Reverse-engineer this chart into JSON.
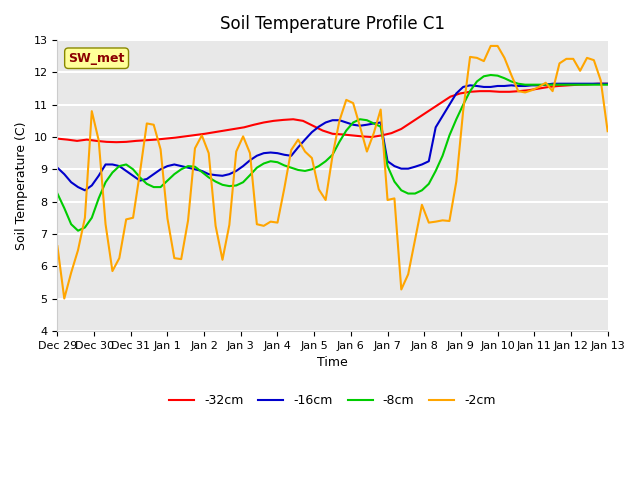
{
  "title": "Soil Temperature Profile C1",
  "xlabel": "Time",
  "ylabel": "Soil Temperature (C)",
  "ylim": [
    4.0,
    13.0
  ],
  "yticks": [
    4.0,
    5.0,
    6.0,
    7.0,
    8.0,
    9.0,
    10.0,
    11.0,
    12.0,
    13.0
  ],
  "bg_color": "#e8e8e8",
  "plot_bg_color": "#e8e8e8",
  "grid_color": "white",
  "annotation_text": "SW_met",
  "annotation_color": "#8B0000",
  "annotation_bg": "#FFFF99",
  "legend_entries": [
    "-32cm",
    "-16cm",
    "-8cm",
    "-2cm"
  ],
  "line_colors": [
    "#ff0000",
    "#0000cc",
    "#00cc00",
    "#ffa500"
  ],
  "x_labels": [
    "Dec 29",
    "Dec 30",
    "Dec 31",
    "Jan 1",
    "Jan 2",
    "Jan 3",
    "Jan 4",
    "Jan 5",
    "Jan 6",
    "Jan 7",
    "Jan 8",
    "Jan 9",
    "Jan 10",
    "Jan 11",
    "Jan 12",
    "Jan 13"
  ],
  "series_32cm": [
    9.95,
    9.92,
    9.88,
    9.92,
    9.88,
    9.85,
    9.84,
    9.85,
    9.88,
    9.9,
    9.92,
    9.95,
    9.98,
    10.02,
    10.06,
    10.1,
    10.15,
    10.2,
    10.25,
    10.3,
    10.38,
    10.45,
    10.5,
    10.53,
    10.55,
    10.5,
    10.35,
    10.2,
    10.1,
    10.08,
    10.05,
    10.02,
    10.0,
    10.05,
    10.12,
    10.25,
    10.45,
    10.65,
    10.85,
    11.05,
    11.25,
    11.35,
    11.4,
    11.42,
    11.42,
    11.4,
    11.4,
    11.42,
    11.45,
    11.5,
    11.55,
    11.58,
    11.6,
    11.62,
    11.63,
    11.65,
    11.65
  ],
  "series_16cm": [
    9.05,
    8.85,
    8.6,
    8.45,
    8.35,
    8.5,
    8.8,
    9.15,
    9.15,
    9.1,
    8.95,
    8.8,
    8.65,
    8.7,
    8.85,
    9.0,
    9.1,
    9.15,
    9.1,
    9.05,
    9.0,
    8.95,
    8.85,
    8.82,
    8.8,
    8.85,
    8.95,
    9.1,
    9.28,
    9.42,
    9.5,
    9.52,
    9.5,
    9.45,
    9.42,
    9.68,
    9.92,
    10.15,
    10.32,
    10.45,
    10.52,
    10.52,
    10.45,
    10.38,
    10.35,
    10.38,
    10.42,
    10.45,
    9.25,
    9.1,
    9.02,
    9.02,
    9.08,
    9.15,
    9.25,
    10.3,
    10.65,
    11.0,
    11.35,
    11.55,
    11.6,
    11.58,
    11.55,
    11.55,
    11.58,
    11.58,
    11.6,
    11.58,
    11.58,
    11.6,
    11.6,
    11.62,
    11.65,
    11.65,
    11.65,
    11.65,
    11.65,
    11.65,
    11.65,
    11.65,
    11.65
  ],
  "series_8cm": [
    8.25,
    7.8,
    7.3,
    7.1,
    7.2,
    7.5,
    8.1,
    8.6,
    8.9,
    9.1,
    9.15,
    9.0,
    8.75,
    8.55,
    8.45,
    8.45,
    8.65,
    8.85,
    9.0,
    9.1,
    9.08,
    8.92,
    8.75,
    8.62,
    8.52,
    8.48,
    8.5,
    8.6,
    8.82,
    9.05,
    9.18,
    9.25,
    9.22,
    9.12,
    9.05,
    8.98,
    8.95,
    9.0,
    9.1,
    9.25,
    9.45,
    9.85,
    10.2,
    10.45,
    10.55,
    10.52,
    10.42,
    10.32,
    9.1,
    8.62,
    8.35,
    8.25,
    8.25,
    8.35,
    8.55,
    8.95,
    9.42,
    10.05,
    10.55,
    11.0,
    11.42,
    11.72,
    11.88,
    11.92,
    11.9,
    11.82,
    11.72,
    11.65,
    11.62,
    11.62,
    11.62,
    11.62,
    11.62,
    11.62,
    11.62,
    11.62,
    11.62,
    11.62,
    11.62,
    11.62,
    11.62
  ],
  "series_2cm": [
    6.62,
    5.0,
    5.8,
    6.5,
    7.5,
    10.8,
    9.9,
    7.3,
    5.85,
    6.25,
    7.45,
    7.5,
    8.9,
    10.42,
    10.38,
    9.62,
    7.48,
    6.25,
    6.22,
    7.42,
    9.65,
    10.05,
    9.5,
    7.25,
    6.2,
    7.28,
    9.55,
    10.02,
    9.5,
    7.3,
    7.25,
    7.38,
    7.35,
    8.42,
    9.6,
    9.92,
    9.55,
    9.35,
    8.38,
    8.05,
    9.42,
    10.5,
    11.15,
    11.05,
    10.32,
    9.55,
    10.12,
    10.85,
    8.05,
    8.1,
    5.28,
    5.75,
    6.82,
    7.9,
    7.35,
    7.38,
    7.42,
    7.4,
    8.62,
    10.82,
    12.48,
    12.45,
    12.35,
    12.82,
    12.82,
    12.45,
    11.92,
    11.42,
    11.38,
    11.45,
    11.55,
    11.68,
    11.42,
    12.28,
    12.42,
    12.42,
    12.05,
    12.45,
    12.38,
    11.75,
    10.18
  ]
}
